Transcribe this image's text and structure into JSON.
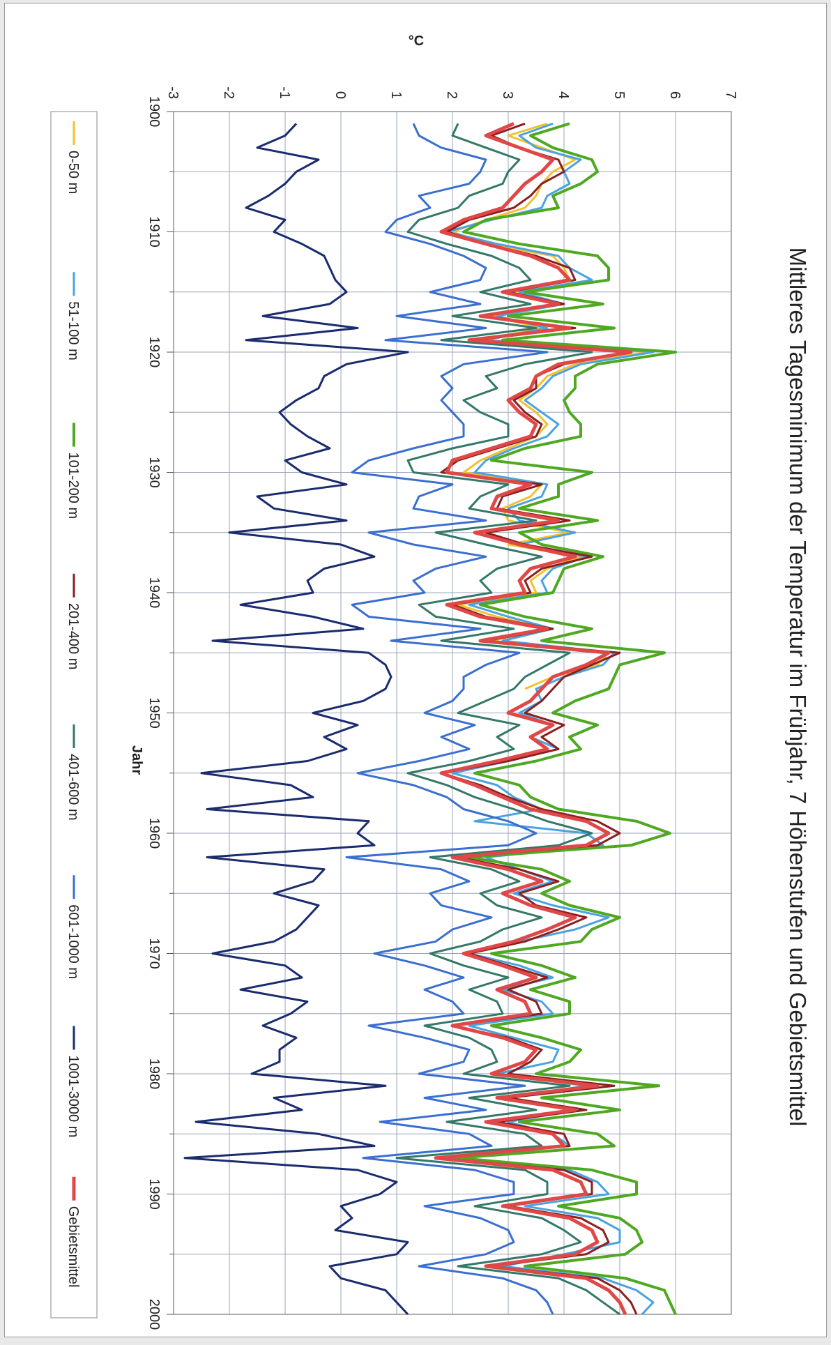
{
  "chart_data": {
    "type": "line",
    "title": "Mittleres Tagesminimum der Temperatur im Frühjahr, 7 Höhenstufen und Gebietsmittel",
    "xlabel": "Jahr",
    "ylabel": "°C",
    "xlim": [
      1900,
      2000
    ],
    "ylim": [
      -3,
      7
    ],
    "x_ticks": [
      "1900",
      "1910",
      "1920",
      "1930",
      "1940",
      "1950",
      "1960",
      "1970",
      "1980",
      "1990",
      "2000"
    ],
    "y_ticks": [
      "-3",
      "-2",
      "-1",
      "0",
      "1",
      "2",
      "3",
      "4",
      "5",
      "6",
      "7"
    ],
    "grid": true,
    "legend_position": "bottom",
    "x": [
      1901,
      1902,
      1903,
      1904,
      1905,
      1906,
      1907,
      1908,
      1909,
      1910,
      1911,
      1912,
      1913,
      1914,
      1915,
      1916,
      1917,
      1918,
      1919,
      1920,
      1921,
      1922,
      1923,
      1924,
      1925,
      1926,
      1927,
      1928,
      1929,
      1930,
      1931,
      1932,
      1933,
      1934,
      1935,
      1936,
      1937,
      1938,
      1939,
      1940,
      1941,
      1942,
      1943,
      1944,
      1945,
      1946,
      1947,
      1948,
      1949,
      1950,
      1951,
      1952,
      1953,
      1954,
      1955,
      1956,
      1957,
      1958,
      1959,
      1960,
      1961,
      1962,
      1963,
      1964,
      1965,
      1966,
      1967,
      1968,
      1969,
      1970,
      1971,
      1972,
      1973,
      1974,
      1975,
      1976,
      1977,
      1978,
      1979,
      1980,
      1981,
      1982,
      1983,
      1984,
      1985,
      1986,
      1987,
      1988,
      1989,
      1990,
      1991,
      1992,
      1993,
      1994,
      1995,
      1996,
      1997,
      1998,
      1999,
      2000
    ],
    "series": [
      {
        "name": "0-50 m",
        "color": "#f2c12e",
        "width": 3,
        "values": [
          3.7,
          3.0,
          3.6,
          4.2,
          3.8,
          3.6,
          3.5,
          3.3,
          2.6,
          2.0,
          2.6,
          3.8,
          4.0,
          4.1,
          3.1,
          3.8,
          2.7,
          3.6,
          2.5,
          5.5,
          4.2,
          3.7,
          3.5,
          3.2,
          3.5,
          3.7,
          3.5,
          3.0,
          2.5,
          2.2,
          3.6,
          3.4,
          2.9,
          3.0,
          4.1,
          3.0,
          4.3,
          3.7,
          3.4,
          3.5,
          2.1,
          2.8,
          3.7,
          2.7,
          4.8,
          4.6,
          3.8,
          3.3,
          null,
          null,
          null,
          null,
          null,
          null,
          null,
          null,
          null,
          null,
          null,
          null,
          null,
          null,
          null,
          null,
          null,
          null,
          null,
          null,
          null,
          null,
          null,
          null,
          null,
          null,
          null,
          null,
          null,
          null,
          null,
          null,
          null,
          null,
          null,
          null,
          null,
          null,
          null,
          null,
          null,
          null,
          null,
          null,
          null,
          null,
          null,
          null,
          null,
          null,
          null,
          null
        ]
      },
      {
        "name": "51-100 m",
        "color": "#4aa3e0",
        "width": 3,
        "values": [
          3.8,
          3.2,
          3.5,
          4.3,
          4.0,
          4.1,
          3.7,
          3.6,
          2.7,
          1.9,
          2.8,
          3.9,
          4.1,
          4.5,
          3.2,
          4.0,
          2.8,
          3.7,
          2.6,
          5.6,
          4.3,
          3.8,
          3.6,
          3.3,
          3.6,
          3.9,
          3.7,
          3.1,
          2.6,
          2.4,
          3.7,
          3.6,
          3.0,
          3.2,
          4.2,
          3.2,
          4.4,
          3.8,
          3.6,
          3.7,
          2.3,
          3.0,
          3.8,
          2.9,
          4.9,
          4.7,
          4.0,
          3.5,
          3.6,
          3.2,
          3.8,
          3.4,
          3.9,
          3.0,
          2.0,
          2.8,
          3.1,
          3.6,
          2.4,
          4.4,
          4.7,
          2.6,
          3.2,
          3.8,
          3.1,
          3.8,
          4.8,
          4.2,
          3.2,
          2.3,
          3.2,
          3.8,
          2.9,
          3.6,
          3.8,
          2.3,
          3.1,
          3.9,
          3.8,
          2.8,
          4.4,
          3.0,
          4.2,
          3.0,
          3.8,
          4.1,
          2.0,
          4.1,
          4.6,
          4.8,
          3.3,
          4.6,
          5.0,
          5.0,
          4.0,
          2.9,
          4.7,
          5.3,
          5.6,
          5.4
        ]
      },
      {
        "name": "101-200 m",
        "color": "#4fa822",
        "width": 4,
        "values": [
          4.1,
          3.4,
          3.8,
          4.5,
          4.6,
          4.3,
          3.8,
          3.9,
          2.6,
          2.2,
          3.2,
          4.6,
          4.8,
          4.8,
          3.3,
          4.7,
          3.0,
          4.9,
          2.9,
          6.0,
          4.6,
          4.2,
          4.2,
          4.0,
          4.1,
          4.3,
          4.3,
          3.3,
          2.7,
          4.5,
          3.9,
          3.9,
          3.2,
          4.6,
          3.2,
          3.6,
          4.7,
          4.0,
          3.9,
          3.8,
          2.5,
          3.3,
          4.5,
          3.6,
          5.8,
          5.0,
          4.9,
          4.8,
          4.2,
          3.8,
          4.6,
          4.1,
          4.3,
          3.5,
          2.4,
          3.2,
          3.4,
          3.9,
          5.3,
          5.9,
          5.2,
          2.3,
          3.6,
          4.1,
          3.6,
          4.1,
          5.0,
          4.5,
          4.3,
          2.7,
          3.6,
          4.2,
          3.4,
          4.1,
          4.1,
          2.7,
          3.6,
          4.3,
          4.1,
          3.5,
          5.7,
          3.6,
          5.0,
          3.2,
          4.6,
          4.9,
          2.1,
          4.5,
          5.3,
          5.3,
          3.9,
          5.0,
          5.3,
          5.4,
          5.1,
          3.3,
          5.1,
          5.8,
          5.9,
          6.0
        ]
      },
      {
        "name": "201-400 m",
        "color": "#8a1f1f",
        "width": 3,
        "values": [
          3.3,
          2.7,
          3.2,
          3.9,
          4.0,
          3.6,
          3.4,
          3.1,
          2.3,
          1.9,
          2.6,
          3.5,
          4.1,
          4.2,
          3.0,
          4.0,
          2.5,
          4.2,
          2.4,
          5.2,
          4.0,
          3.5,
          3.5,
          3.1,
          3.3,
          3.6,
          3.5,
          2.8,
          2.1,
          1.8,
          3.6,
          2.9,
          2.8,
          4.1,
          2.6,
          3.3,
          4.5,
          3.6,
          3.3,
          3.4,
          2.0,
          2.6,
          3.8,
          2.6,
          5.0,
          4.5,
          4.0,
          3.8,
          3.6,
          3.3,
          4.0,
          3.6,
          3.9,
          3.0,
          1.8,
          2.5,
          3.0,
          3.6,
          4.6,
          5.0,
          4.6,
          2.1,
          3.2,
          3.9,
          3.2,
          3.5,
          4.4,
          3.9,
          3.3,
          2.3,
          3.0,
          3.7,
          3.0,
          3.5,
          3.6,
          2.0,
          3.0,
          3.6,
          3.4,
          3.0,
          4.9,
          3.0,
          4.4,
          2.8,
          4.0,
          4.1,
          1.8,
          4.0,
          4.5,
          4.5,
          3.0,
          4.3,
          4.7,
          4.8,
          4.4,
          2.7,
          4.6,
          5.0,
          5.2,
          5.3
        ]
      },
      {
        "name": "401-600 m",
        "color": "#337868",
        "width": 3,
        "values": [
          2.1,
          2.0,
          2.6,
          3.2,
          3.0,
          2.9,
          2.3,
          2.1,
          1.4,
          1.2,
          1.9,
          2.7,
          3.2,
          3.4,
          2.5,
          3.4,
          2.0,
          3.5,
          1.8,
          4.5,
          3.3,
          2.6,
          2.8,
          2.2,
          2.5,
          3.0,
          3.0,
          2.0,
          1.2,
          1.3,
          3.0,
          2.5,
          2.3,
          3.5,
          1.7,
          2.6,
          3.6,
          2.8,
          2.5,
          2.7,
          1.4,
          1.7,
          3.1,
          1.8,
          4.1,
          3.7,
          3.3,
          3.1,
          2.6,
          2.1,
          3.2,
          2.8,
          3.1,
          2.3,
          1.2,
          1.9,
          2.4,
          3.1,
          3.7,
          4.5,
          3.9,
          1.6,
          2.7,
          3.2,
          2.5,
          2.8,
          3.6,
          2.9,
          2.5,
          1.6,
          2.2,
          3.0,
          2.3,
          2.8,
          2.9,
          1.5,
          2.3,
          2.7,
          2.8,
          2.2,
          4.1,
          2.3,
          3.5,
          1.9,
          3.3,
          3.6,
          1.0,
          3.3,
          3.7,
          3.7,
          2.4,
          3.6,
          4.0,
          4.3,
          3.6,
          2.1,
          3.9,
          4.4,
          4.7,
          5.0
        ]
      },
      {
        "name": "601-1000 m",
        "color": "#3a6fd0",
        "width": 3,
        "values": [
          1.3,
          1.4,
          1.8,
          2.6,
          2.5,
          2.3,
          1.4,
          1.6,
          1.0,
          0.8,
          1.6,
          2.2,
          2.6,
          2.5,
          1.6,
          2.5,
          1.0,
          2.6,
          0.8,
          3.7,
          2.2,
          1.8,
          2.0,
          1.8,
          2.0,
          2.2,
          2.2,
          1.3,
          0.5,
          0.2,
          2.0,
          1.4,
          1.3,
          2.6,
          0.5,
          1.3,
          2.6,
          1.7,
          1.3,
          1.5,
          0.2,
          0.5,
          2.5,
          0.9,
          3.2,
          2.6,
          2.2,
          2.2,
          2.0,
          1.5,
          2.4,
          1.8,
          2.3,
          1.4,
          0.3,
          1.3,
          1.9,
          2.2,
          3.0,
          3.5,
          3.0,
          0.1,
          1.8,
          2.3,
          1.6,
          1.8,
          2.7,
          2.0,
          1.7,
          0.6,
          1.5,
          2.2,
          1.5,
          2.0,
          2.2,
          0.5,
          1.5,
          2.3,
          2.2,
          1.4,
          3.3,
          1.5,
          2.6,
          0.7,
          2.3,
          2.7,
          0.4,
          2.4,
          3.1,
          3.1,
          1.5,
          2.5,
          3.0,
          3.1,
          2.6,
          1.4,
          2.9,
          3.5,
          3.7,
          3.8
        ]
      },
      {
        "name": "1001-3000 m",
        "color": "#1a2b6e",
        "width": 3,
        "values": [
          -0.8,
          -1.0,
          -1.5,
          -0.4,
          -0.8,
          -1.0,
          -1.3,
          -1.7,
          -1.0,
          -1.2,
          -0.7,
          -0.3,
          -0.2,
          -0.1,
          0.1,
          -0.2,
          -1.4,
          0.3,
          -1.7,
          1.2,
          0.1,
          -0.3,
          -0.4,
          -0.8,
          -1.1,
          -0.9,
          -0.6,
          -0.2,
          -1.0,
          -0.7,
          0.1,
          -1.5,
          -1.2,
          0.1,
          -2.0,
          0.0,
          0.6,
          -0.3,
          -0.6,
          -0.5,
          -1.8,
          -0.5,
          0.4,
          -2.3,
          0.5,
          0.8,
          0.9,
          0.8,
          0.4,
          -0.5,
          0.3,
          -0.3,
          0.1,
          -0.6,
          -2.5,
          -0.9,
          -0.5,
          -2.4,
          0.5,
          0.3,
          0.6,
          -2.4,
          -0.3,
          -0.5,
          -1.2,
          -0.4,
          -0.6,
          -0.8,
          -1.2,
          -2.3,
          -1.0,
          -0.7,
          -1.8,
          -0.6,
          -0.9,
          -1.4,
          -0.8,
          -1.1,
          -1.1,
          -1.6,
          0.8,
          -1.2,
          -0.7,
          -2.6,
          -0.4,
          0.6,
          -2.8,
          0.3,
          1.0,
          0.7,
          0.0,
          0.2,
          -0.1,
          1.2,
          1.0,
          -0.2,
          0.0,
          0.8,
          1.0,
          1.2
        ]
      },
      {
        "name": "Gebietsmittel",
        "color": "#e04848",
        "width": 5,
        "values": [
          3.1,
          2.6,
          3.2,
          3.8,
          3.6,
          3.3,
          3.1,
          2.9,
          2.2,
          1.8,
          2.6,
          3.4,
          3.9,
          4.1,
          2.9,
          3.9,
          2.5,
          4.1,
          2.3,
          5.2,
          3.9,
          3.5,
          3.4,
          3.0,
          3.2,
          3.5,
          3.4,
          2.7,
          2.0,
          1.9,
          3.4,
          2.8,
          2.7,
          3.9,
          2.4,
          3.2,
          4.2,
          3.4,
          3.2,
          3.3,
          1.9,
          2.5,
          3.7,
          2.5,
          4.8,
          4.4,
          3.8,
          3.6,
          3.4,
          3.0,
          3.8,
          3.4,
          3.7,
          2.8,
          1.8,
          2.4,
          2.9,
          3.4,
          4.4,
          4.8,
          4.4,
          2.0,
          3.0,
          3.6,
          2.9,
          3.4,
          4.2,
          3.7,
          3.1,
          2.2,
          2.9,
          3.5,
          2.8,
          3.3,
          3.4,
          2.0,
          2.9,
          3.5,
          3.3,
          2.7,
          4.6,
          2.8,
          4.2,
          2.6,
          3.8,
          4.0,
          1.7,
          3.8,
          4.3,
          4.4,
          2.9,
          4.1,
          4.5,
          4.6,
          4.2,
          2.6,
          4.4,
          4.8,
          5.0,
          5.1
        ]
      }
    ]
  }
}
